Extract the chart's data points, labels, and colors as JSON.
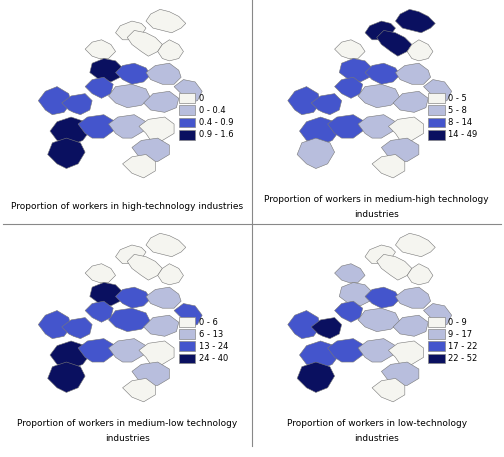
{
  "panels": [
    {
      "title": "Proportion of workers in high-technology industries",
      "title2": "",
      "legend_entries": [
        {
          "label": "0",
          "color": "#f5f5f0"
        },
        {
          "label": "0 - 0.4",
          "color": "#b8bedd"
        },
        {
          "label": "0.4 - 0.9",
          "color": "#4455cc"
        },
        {
          "label": "0.9 - 1.6",
          "color": "#0a1060"
        }
      ]
    },
    {
      "title": "Proportion of workers in medium-high technology",
      "title2": "industries",
      "legend_entries": [
        {
          "label": "0 - 5",
          "color": "#f5f5f0"
        },
        {
          "label": "5 - 8",
          "color": "#b8bedd"
        },
        {
          "label": "8 - 14",
          "color": "#4455cc"
        },
        {
          "label": "14 - 49",
          "color": "#0a1060"
        }
      ]
    },
    {
      "title": "Proportion of workers in medium-low technology",
      "title2": "industries",
      "legend_entries": [
        {
          "label": "0 - 6",
          "color": "#f5f5f0"
        },
        {
          "label": "6 - 13",
          "color": "#b8bedd"
        },
        {
          "label": "13 - 24",
          "color": "#4455cc"
        },
        {
          "label": "24 - 40",
          "color": "#0a1060"
        }
      ]
    },
    {
      "title": "Proportion of workers in low-technology",
      "title2": "industries",
      "legend_entries": [
        {
          "label": "0 - 9",
          "color": "#f5f5f0"
        },
        {
          "label": "9 - 17",
          "color": "#b8bedd"
        },
        {
          "label": "17 - 22",
          "color": "#4455cc"
        },
        {
          "label": "22 - 52",
          "color": "#0a1060"
        }
      ]
    }
  ],
  "region_colors": {
    "tl": {
      "north_top": "#f5f5f0",
      "north_left": "#f5f5f0",
      "north_mid": "#f5f5f0",
      "north_right": "#f5f5f0",
      "nw_prot": "#f5f5f0",
      "center_nw": "#0a1060",
      "center_n": "#4455cc",
      "center_ne": "#b8bedd",
      "center_e": "#b8bedd",
      "center_w": "#4455cc",
      "center_mid": "#b8bedd",
      "center_se": "#b8bedd",
      "west_far": "#4455cc",
      "west_mid": "#4455cc",
      "sw_top": "#0a1060",
      "sw_bot": "#0a1060",
      "south_l": "#4455cc",
      "south_m": "#b8bedd",
      "south_r": "#f5f5f0",
      "se_top": "#b8bedd",
      "se_bot": "#f5f5f0"
    },
    "tr": {
      "north_top": "#0a1060",
      "north_left": "#0a1060",
      "north_mid": "#0a1060",
      "north_right": "#f5f5f0",
      "nw_prot": "#f5f5f0",
      "center_nw": "#4455cc",
      "center_n": "#4455cc",
      "center_ne": "#b8bedd",
      "center_e": "#b8bedd",
      "center_w": "#4455cc",
      "center_mid": "#b8bedd",
      "center_se": "#b8bedd",
      "west_far": "#4455cc",
      "west_mid": "#4455cc",
      "sw_top": "#4455cc",
      "sw_bot": "#b8bedd",
      "south_l": "#4455cc",
      "south_m": "#b8bedd",
      "south_r": "#f5f5f0",
      "se_top": "#b8bedd",
      "se_bot": "#f5f5f0"
    },
    "bl": {
      "north_top": "#f5f5f0",
      "north_left": "#f5f5f0",
      "north_mid": "#f5f5f0",
      "north_right": "#f5f5f0",
      "nw_prot": "#f5f5f0",
      "center_nw": "#0a1060",
      "center_n": "#4455cc",
      "center_ne": "#b8bedd",
      "center_e": "#4455cc",
      "center_w": "#4455cc",
      "center_mid": "#4455cc",
      "center_se": "#b8bedd",
      "west_far": "#4455cc",
      "west_mid": "#4455cc",
      "sw_top": "#0a1060",
      "sw_bot": "#0a1060",
      "south_l": "#4455cc",
      "south_m": "#b8bedd",
      "south_r": "#f5f5f0",
      "se_top": "#b8bedd",
      "se_bot": "#f5f5f0"
    },
    "br": {
      "north_top": "#f5f5f0",
      "north_left": "#f5f5f0",
      "north_mid": "#f5f5f0",
      "north_right": "#f5f5f0",
      "nw_prot": "#b8bedd",
      "center_nw": "#b8bedd",
      "center_n": "#4455cc",
      "center_ne": "#b8bedd",
      "center_e": "#b8bedd",
      "center_w": "#4455cc",
      "center_mid": "#b8bedd",
      "center_se": "#b8bedd",
      "west_far": "#4455cc",
      "west_mid": "#0a1060",
      "sw_top": "#4455cc",
      "sw_bot": "#0a1060",
      "south_l": "#4455cc",
      "south_m": "#b8bedd",
      "south_r": "#f5f5f0",
      "se_top": "#b8bedd",
      "se_bot": "#f5f5f0"
    }
  },
  "border_color": "#aaaaaa",
  "edge_color": "#777777",
  "background_color": "#ffffff",
  "title_fontsize": 6.5,
  "legend_fontsize": 6.0,
  "panel_border_color": "#888888"
}
